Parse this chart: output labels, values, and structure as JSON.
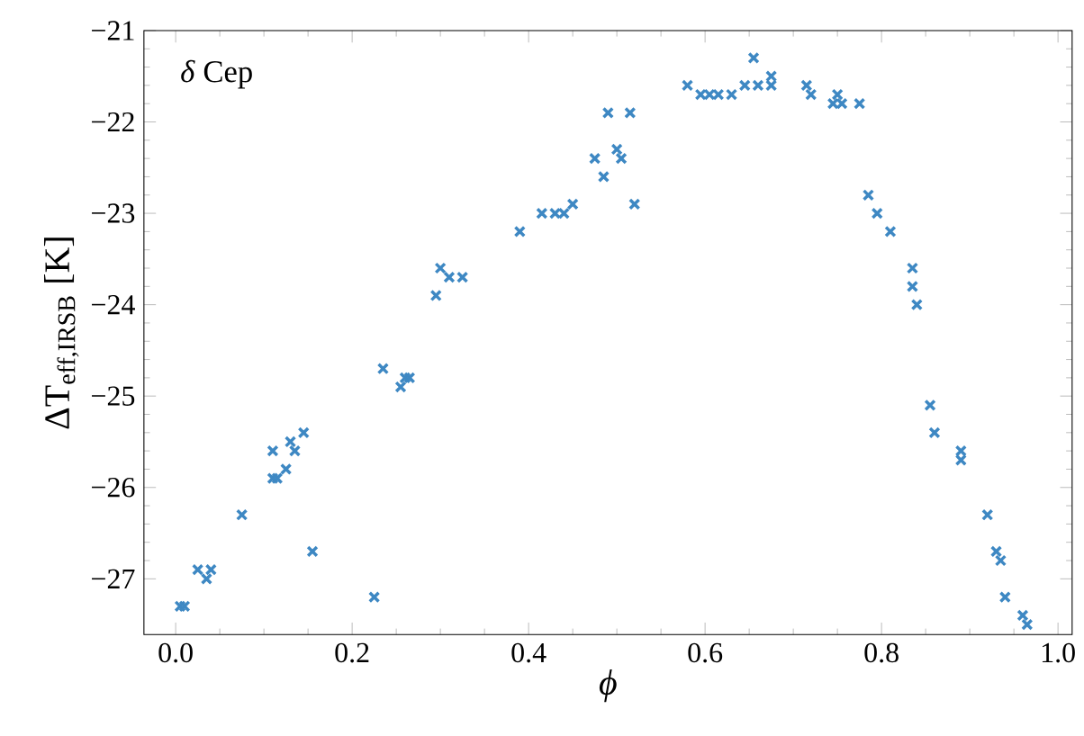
{
  "chart_data": {
    "type": "scatter",
    "xlabel": "ϕ",
    "ylabel": "ΔT$_{eff,IRSB}$ [K]",
    "annotations": [
      "*δ* Cep"
    ],
    "marker": "cross",
    "grid": false,
    "xlim": [
      -0.036,
      1.016
    ],
    "ylim": [
      -27.61,
      -21
    ],
    "xticks": [
      {
        "value": 0,
        "label": "0.0"
      },
      {
        "value": 0.2,
        "label": "0.2"
      },
      {
        "value": 0.4,
        "label": "0.4"
      },
      {
        "value": 0.6,
        "label": "0.6"
      },
      {
        "value": 0.8,
        "label": "0.8"
      },
      {
        "value": 1,
        "label": "1.0"
      }
    ],
    "yticks": [
      {
        "value": -27,
        "label": "−27"
      },
      {
        "value": -26,
        "label": "−26"
      },
      {
        "value": -25,
        "label": "−25"
      },
      {
        "value": -24,
        "label": "−24"
      },
      {
        "value": -23,
        "label": "−23"
      },
      {
        "value": -22,
        "label": "−22"
      },
      {
        "value": -21,
        "label": "−21"
      }
    ],
    "series": [
      {
        "color": "#3e88c3",
        "x": [
          0.005,
          0.01,
          0.025,
          0.035,
          0.04,
          0.075,
          0.11,
          0.11,
          0.115,
          0.125,
          0.13,
          0.135,
          0.145,
          0.155,
          0.225,
          0.235,
          0.255,
          0.26,
          0.265,
          0.295,
          0.3,
          0.31,
          0.325,
          0.39,
          0.415,
          0.43,
          0.44,
          0.45,
          0.475,
          0.485,
          0.49,
          0.5,
          0.505,
          0.515,
          0.52,
          0.58,
          0.595,
          0.605,
          0.615,
          0.63,
          0.645,
          0.655,
          0.66,
          0.675,
          0.675,
          0.715,
          0.72,
          0.745,
          0.75,
          0.755,
          0.775,
          0.785,
          0.795,
          0.81,
          0.835,
          0.835,
          0.84,
          0.855,
          0.86,
          0.89,
          0.89,
          0.92,
          0.93,
          0.935,
          0.94,
          0.96,
          0.965
        ],
        "values": [
          -27.3,
          -27.3,
          -26.9,
          -27.0,
          -26.9,
          -26.3,
          -25.9,
          -25.6,
          -25.9,
          -25.8,
          -25.5,
          -25.6,
          -25.4,
          -26.7,
          -27.2,
          -24.7,
          -24.9,
          -24.8,
          -24.8,
          -23.9,
          -23.6,
          -23.7,
          -23.7,
          -23.2,
          -23.0,
          -23.0,
          -23.0,
          -22.9,
          -22.4,
          -22.6,
          -21.9,
          -22.3,
          -22.4,
          -21.9,
          -22.9,
          -21.6,
          -21.7,
          -21.7,
          -21.7,
          -21.7,
          -21.6,
          -21.3,
          -21.6,
          -21.5,
          -21.6,
          -21.6,
          -21.7,
          -21.8,
          -21.7,
          -21.8,
          -21.8,
          -22.8,
          -23.0,
          -23.2,
          -23.6,
          -23.8,
          -24.0,
          -25.1,
          -25.4,
          -25.6,
          -25.7,
          -26.3,
          -26.7,
          -26.8,
          -27.2,
          -27.4,
          -27.5
        ]
      }
    ]
  }
}
